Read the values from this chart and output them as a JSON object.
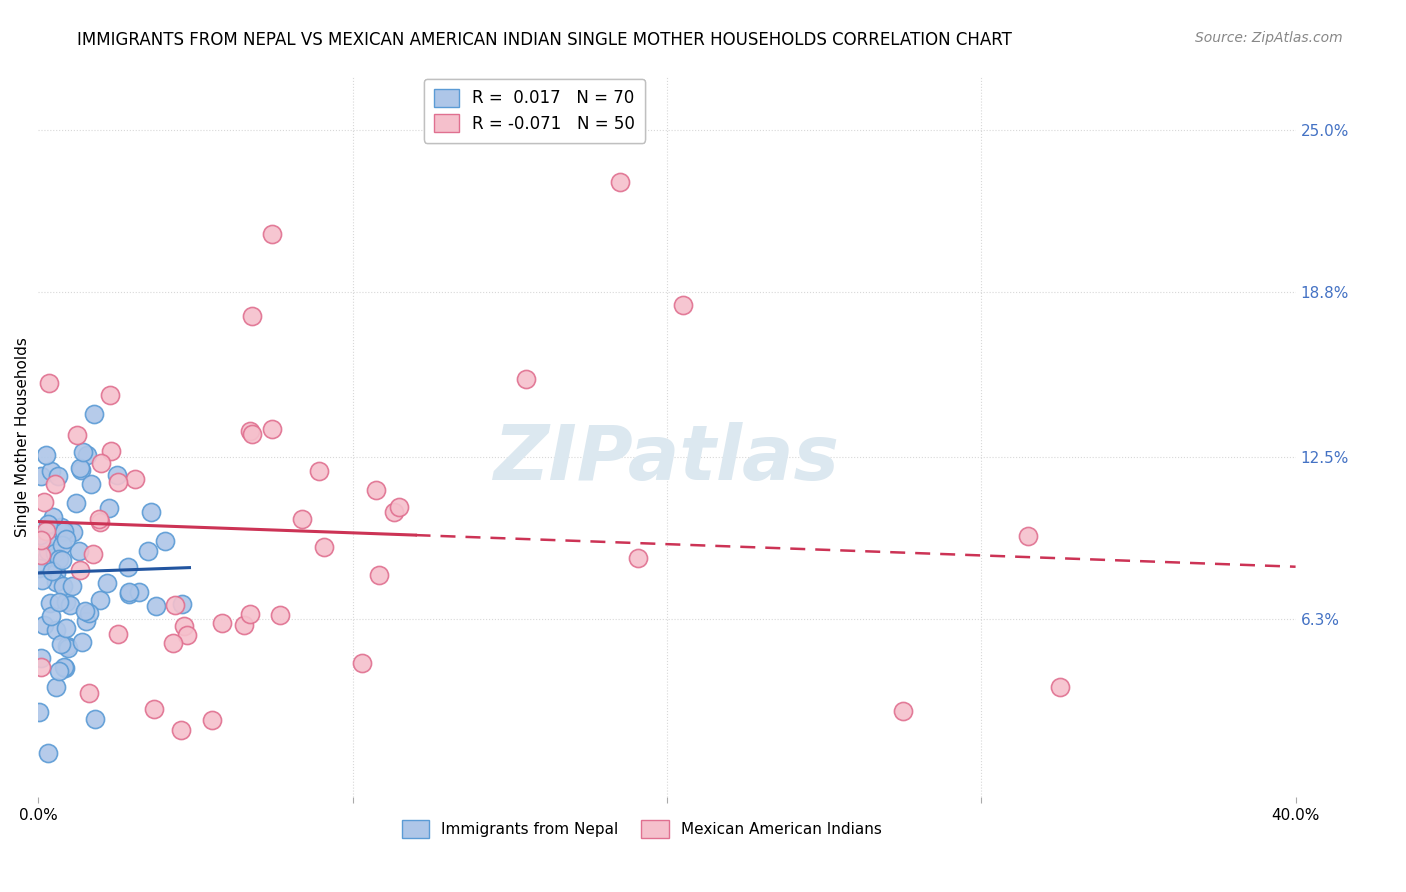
{
  "title": "IMMIGRANTS FROM NEPAL VS MEXICAN AMERICAN INDIAN SINGLE MOTHER HOUSEHOLDS CORRELATION CHART",
  "source": "Source: ZipAtlas.com",
  "ylabel": "Single Mother Households",
  "y_tick_labels_right": [
    "6.3%",
    "12.5%",
    "18.8%",
    "25.0%"
  ],
  "y_tick_values": [
    0.063,
    0.125,
    0.188,
    0.25
  ],
  "xlim": [
    0.0,
    0.4
  ],
  "ylim": [
    -0.005,
    0.27
  ],
  "nepal_R": 0.017,
  "nepal_N": 70,
  "mexican_R": -0.071,
  "mexican_N": 50,
  "nepal_color": "#aec6e8",
  "nepal_edge_color": "#5b9bd5",
  "mexican_color": "#f5c0cc",
  "mexican_edge_color": "#e07090",
  "nepal_line_color": "#2255a0",
  "mexican_line_color": "#cc3355",
  "watermark_color": "#dce8f0",
  "background_color": "#ffffff",
  "grid_color": "#d8d8d8",
  "legend_edge_color": "#c0c0c0",
  "right_axis_color": "#4472c4",
  "title_fontsize": 12,
  "source_fontsize": 10,
  "axis_label_fontsize": 11,
  "legend_fontsize": 12,
  "watermark_fontsize": 55
}
